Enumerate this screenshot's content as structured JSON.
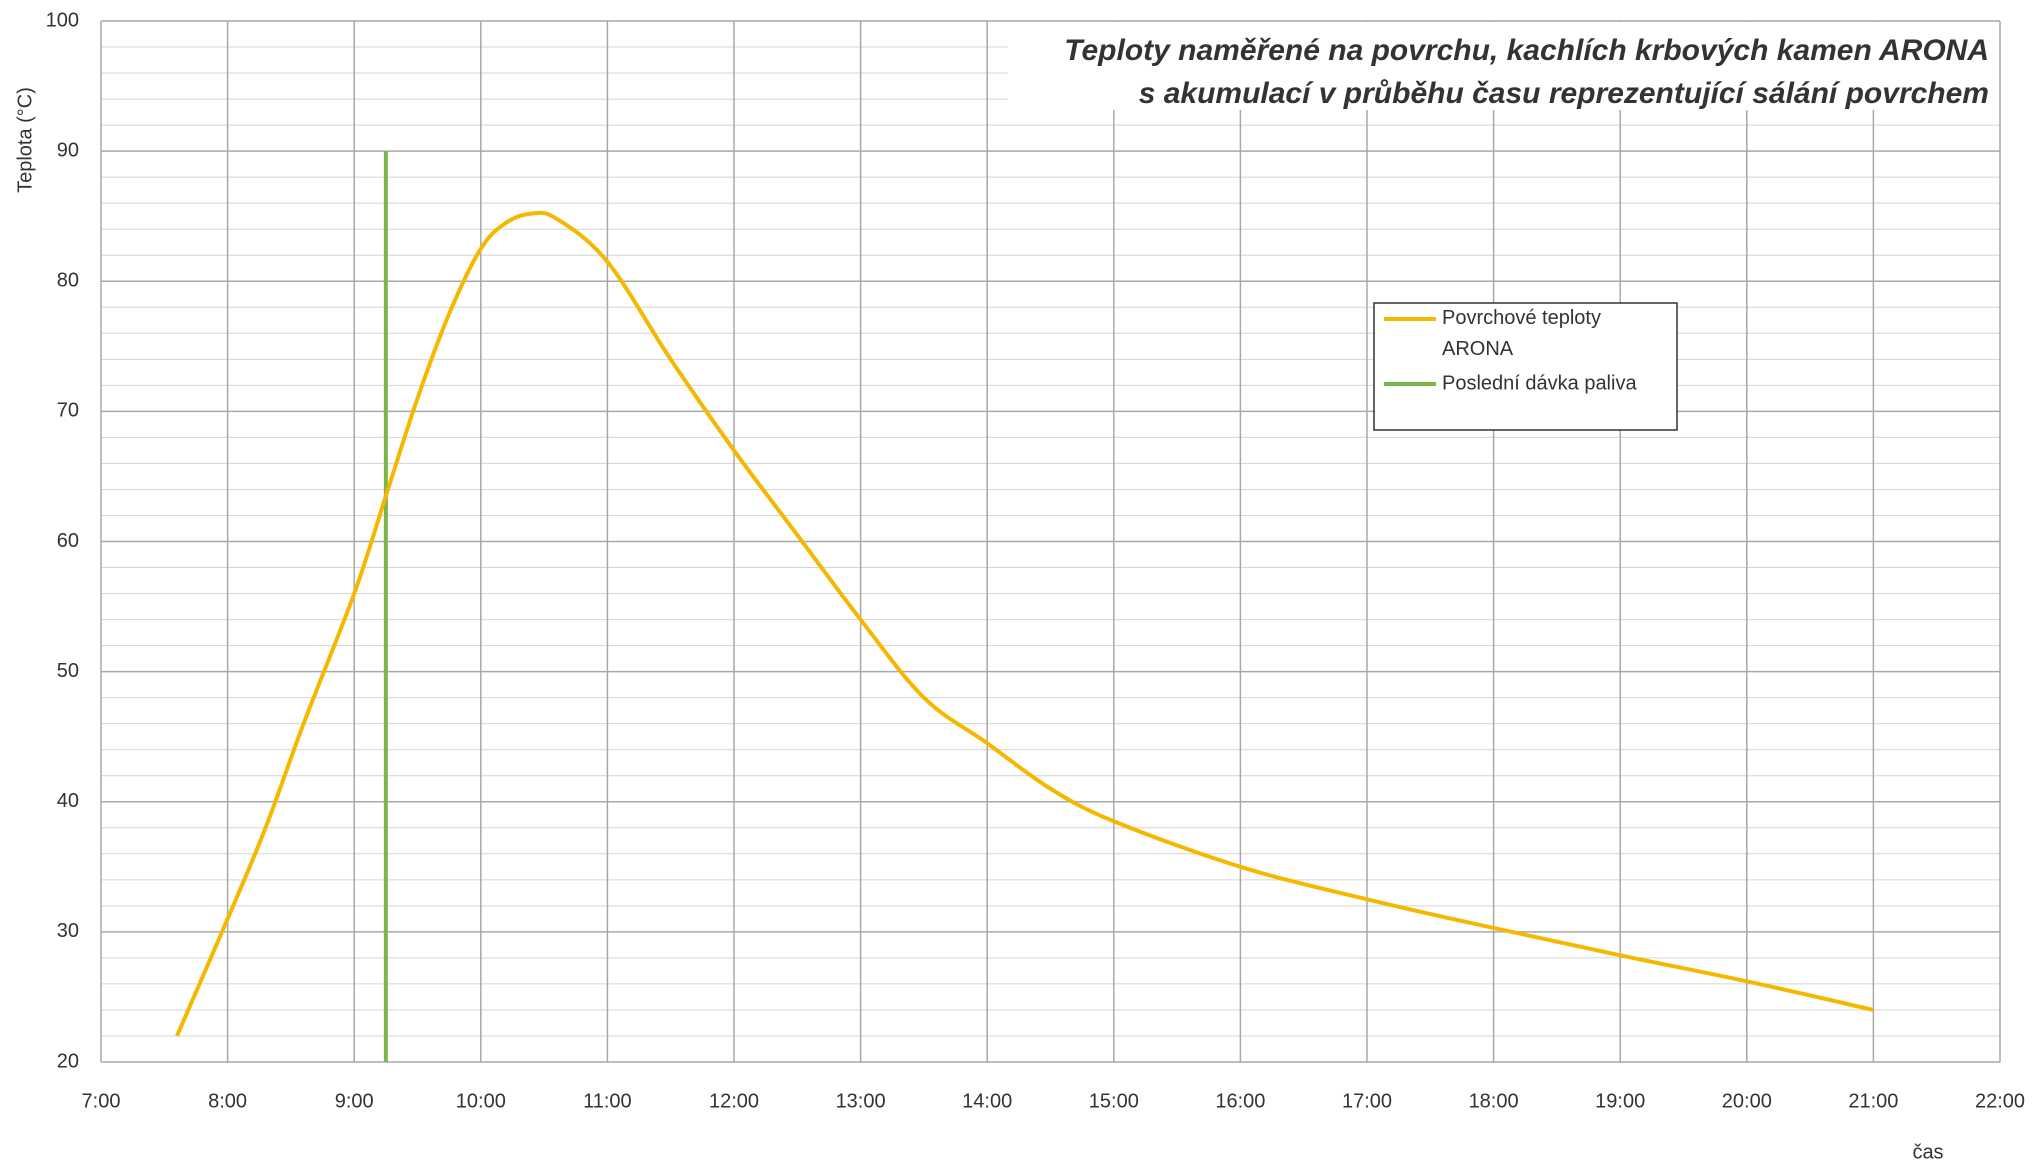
{
  "chart_data": {
    "type": "line",
    "title": "Teploty naměřené na povrchu, kachlích krbových kamen ARONA",
    "subtitle": "s akumulací v průběhu času reprezentující sálání povrchem",
    "x_label": "čas",
    "y_label": "Teplota (°C)",
    "xlim": [
      7,
      22
    ],
    "xticks": [
      {
        "value": 7,
        "label": "7:00"
      },
      {
        "value": 8,
        "label": "8:00"
      },
      {
        "value": 9,
        "label": "9:00"
      },
      {
        "value": 10,
        "label": "10:00"
      },
      {
        "value": 11,
        "label": "11:00"
      },
      {
        "value": 12,
        "label": "12:00"
      },
      {
        "value": 13,
        "label": "13:00"
      },
      {
        "value": 14,
        "label": "14:00"
      },
      {
        "value": 15,
        "label": "15:00"
      },
      {
        "value": 16,
        "label": "16:00"
      },
      {
        "value": 17,
        "label": "17:00"
      },
      {
        "value": 18,
        "label": "18:00"
      },
      {
        "value": 19,
        "label": "19:00"
      },
      {
        "value": 20,
        "label": "20:00"
      },
      {
        "value": 21,
        "label": "21:00"
      },
      {
        "value": 22,
        "label": "22:00"
      }
    ],
    "ylim": [
      20,
      100
    ],
    "yticks": [
      20,
      30,
      40,
      50,
      60,
      70,
      80,
      90,
      100
    ],
    "yminorticks": [
      22,
      24,
      26,
      28,
      32,
      34,
      36,
      38,
      42,
      44,
      46,
      48,
      52,
      54,
      56,
      58,
      62,
      64,
      66,
      68,
      72,
      74,
      76,
      78,
      82,
      84,
      86,
      88,
      92,
      94,
      96,
      98
    ],
    "grid": true,
    "series": [
      {
        "name": "Povrchové teploty ARONA",
        "color": "#f5b800",
        "x": [
          7.6,
          8.0,
          8.3,
          8.6,
          9.0,
          9.25,
          9.5,
          9.75,
          10.0,
          10.2,
          10.4,
          10.6,
          11.0,
          11.5,
          12.0,
          12.5,
          13.0,
          13.5,
          14.0,
          14.5,
          15.0,
          16.0,
          17.0,
          18.0,
          19.0,
          20.0,
          21.0
        ],
        "values": [
          22,
          31,
          38,
          46,
          56,
          63.5,
          71,
          77.5,
          82.5,
          84.5,
          85.2,
          84.8,
          81.5,
          74,
          67,
          60.5,
          54,
          48,
          44.5,
          41,
          38.5,
          35,
          32.5,
          30.3,
          28.2,
          26.2,
          24
        ]
      },
      {
        "name": "Poslední dávka paliva",
        "color": "#7ab648",
        "x": [
          9.25,
          9.25
        ],
        "values": [
          20,
          90
        ]
      }
    ]
  }
}
